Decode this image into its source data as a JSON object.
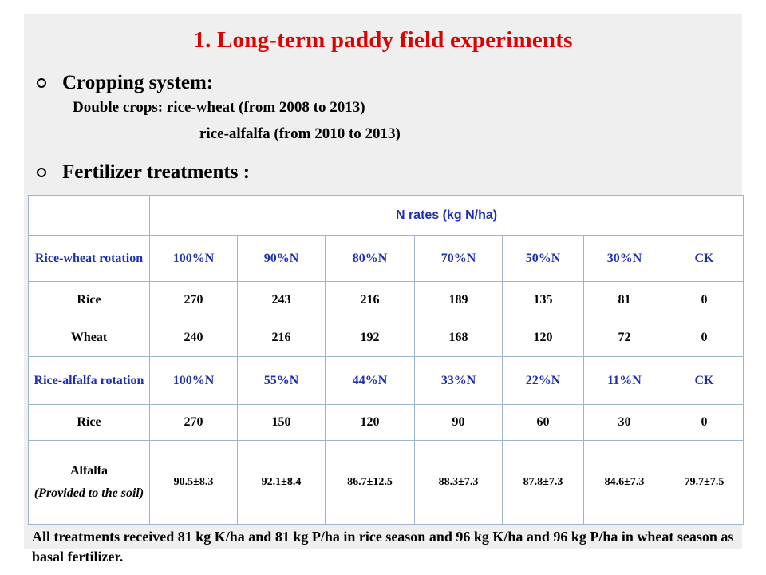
{
  "title": "1.  Long-term paddy field experiments",
  "cropping": {
    "heading": "Cropping system:",
    "line1": "Double crops: rice-wheat (from 2008 to 2013)",
    "line2": "rice-alfalfa (from 2010 to 2013)"
  },
  "fertilizer": {
    "heading": "Fertilizer treatments :"
  },
  "table": {
    "header": "N rates (kg N/ha)",
    "rice_wheat": {
      "label": "Rice-wheat rotation",
      "levels": [
        "100%N",
        "90%N",
        "80%N",
        "70%N",
        "50%N",
        "30%N",
        "CK"
      ],
      "rows": [
        {
          "crop": "Rice",
          "values": [
            "270",
            "243",
            "216",
            "189",
            "135",
            "81",
            "0"
          ]
        },
        {
          "crop": "Wheat",
          "values": [
            "240",
            "216",
            "192",
            "168",
            "120",
            "72",
            "0"
          ]
        }
      ]
    },
    "rice_alfalfa": {
      "label": "Rice-alfalfa rotation",
      "levels": [
        "100%N",
        "55%N",
        "44%N",
        "33%N",
        "22%N",
        "11%N",
        "CK"
      ],
      "rice_row": {
        "crop": "Rice",
        "values": [
          "270",
          "150",
          "120",
          "90",
          "60",
          "30",
          "0"
        ]
      },
      "alfalfa_row": {
        "crop": "Alfalfa",
        "note": "(Provided to the soil)",
        "values": [
          "90.5±8.3",
          "92.1±8.4",
          "86.7±12.5",
          "88.3±7.3",
          "87.8±7.3",
          "84.6±7.3",
          "79.7±7.5"
        ]
      }
    }
  },
  "footnote": "All treatments received 81 kg K/ha and 81 kg P/ha in rice season and 96 kg K/ha and 96 kg P/ha in wheat season as basal fertilizer."
}
